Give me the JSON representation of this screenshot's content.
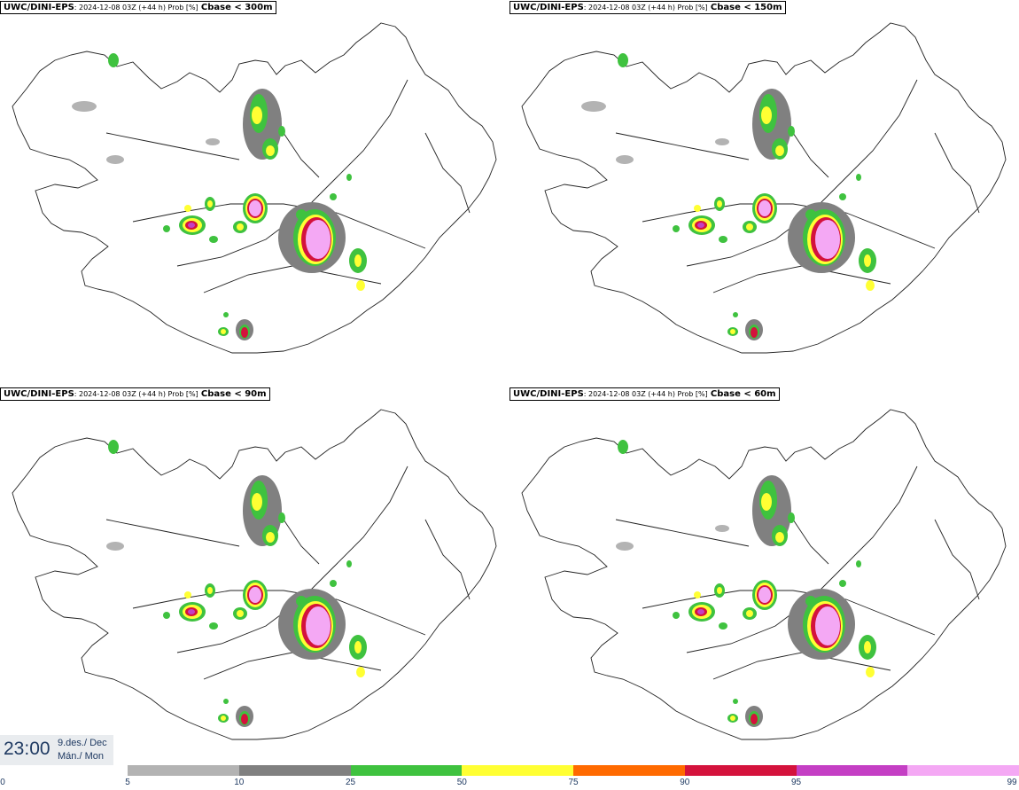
{
  "panels": [
    {
      "model": "UWC/DINI-EPS",
      "meta": ": 2024-12-08 03Z (+44 h) Prob [%]",
      "variable": "Cbase < 300m"
    },
    {
      "model": "UWC/DINI-EPS",
      "meta": ": 2024-12-08 03Z (+44 h) Prob [%]",
      "variable": "Cbase < 150m"
    },
    {
      "model": "UWC/DINI-EPS",
      "meta": ": 2024-12-08 03Z (+44 h) Prob [%]",
      "variable": "Cbase < 90m"
    },
    {
      "model": "UWC/DINI-EPS",
      "meta": ": 2024-12-08 03Z (+44 h) Prob [%]",
      "variable": "Cbase < 60m"
    }
  ],
  "clock": {
    "time": "23:00",
    "date": "9.des./ Dec",
    "day": "Mán./ Mon"
  },
  "legend": {
    "ticks": [
      "0",
      "5",
      "10",
      "25",
      "50",
      "75",
      "90",
      "95",
      "99"
    ],
    "colors": [
      "#b3b3b3",
      "#808080",
      "#3fc23f",
      "#ffff33",
      "#ff6a00",
      "#d4123c",
      "#c43fc4",
      "#f4a8f4"
    ]
  }
}
